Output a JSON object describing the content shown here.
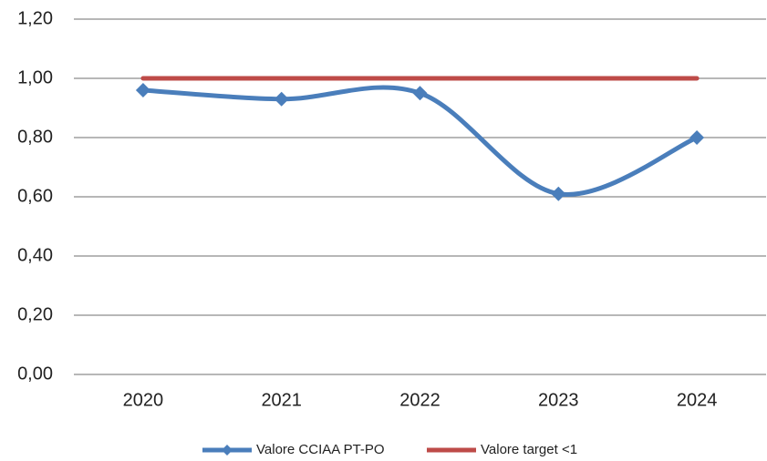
{
  "chart_data": {
    "type": "line",
    "categories": [
      "2020",
      "2021",
      "2022",
      "2023",
      "2024"
    ],
    "series": [
      {
        "name": "Valore CCIAA PT-PO",
        "color": "#4a7ebb",
        "values": [
          0.96,
          0.93,
          0.95,
          0.61,
          0.8
        ],
        "smooth": true,
        "marker": "diamond"
      },
      {
        "name": "Valore target <1",
        "color": "#be4b48",
        "values": [
          1,
          1,
          1,
          1,
          1
        ]
      }
    ],
    "ylim": [
      0,
      1.2
    ],
    "yticks": [
      {
        "value": 0,
        "label": "0,00"
      },
      {
        "value": 0.2,
        "label": "0,20"
      },
      {
        "value": 0.4,
        "label": "0,40"
      },
      {
        "value": 0.6,
        "label": "0,60"
      },
      {
        "value": 0.8,
        "label": "0,80"
      },
      {
        "value": 1,
        "label": "1,00"
      },
      {
        "value": 1.2,
        "label": "1,20"
      }
    ],
    "grid": true,
    "legend": "bottom"
  }
}
